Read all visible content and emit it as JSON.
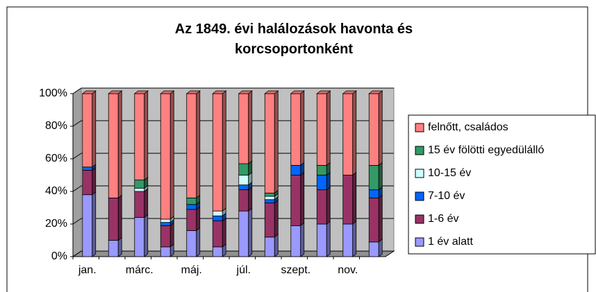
{
  "chart_data": {
    "type": "bar",
    "stacked": true,
    "title": "Az 1849. évi halálozások havonta és korcsoportonként",
    "categories": [
      "jan.",
      null,
      "márc.",
      null,
      "máj.",
      null,
      "júl.",
      null,
      "szept.",
      null,
      "nov.",
      null
    ],
    "series": [
      {
        "name": "1 év alatt",
        "color": "#9999ff",
        "values": [
          38,
          10,
          24,
          6,
          16,
          6,
          28,
          12,
          19,
          20,
          20,
          9
        ]
      },
      {
        "name": "1-6 év",
        "color": "#993366",
        "values": [
          15,
          26,
          16,
          13,
          13,
          16,
          13,
          21,
          31,
          21,
          30,
          27
        ]
      },
      {
        "name": "7-10 év",
        "color": "#0066ff",
        "values": [
          2,
          0,
          0,
          2,
          3,
          3,
          3,
          2,
          6,
          9,
          0,
          5
        ]
      },
      {
        "name": "10-15 év",
        "color": "#ccffff",
        "values": [
          0,
          0,
          2,
          2,
          0,
          3,
          6,
          2,
          0,
          0,
          0,
          0
        ]
      },
      {
        "name": "15 év fölötti egyedülálló",
        "color": "#339966",
        "values": [
          0,
          0,
          5,
          0,
          4,
          0,
          7,
          2,
          0,
          6,
          0,
          15
        ]
      },
      {
        "name": "felnőtt, családos",
        "color": "#ff8080",
        "values": [
          45,
          64,
          53,
          77,
          64,
          72,
          43,
          61,
          44,
          44,
          50,
          44
        ]
      }
    ],
    "ylim": [
      0,
      100
    ],
    "yticks": [
      {
        "value": 0,
        "label": "0%"
      },
      {
        "value": 20,
        "label": "20%"
      },
      {
        "value": 40,
        "label": "40%"
      },
      {
        "value": 60,
        "label": "60%"
      },
      {
        "value": 80,
        "label": "80%"
      },
      {
        "value": 100,
        "label": "100%"
      }
    ],
    "grid": true,
    "legend": "right"
  }
}
